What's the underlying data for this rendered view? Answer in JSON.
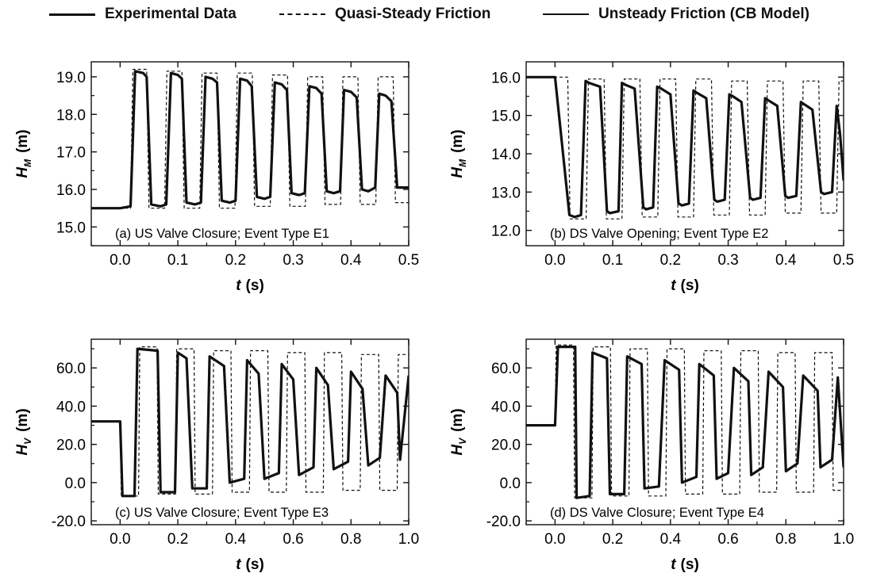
{
  "legend": {
    "items": [
      {
        "label": "Experimental Data",
        "style": "solid"
      },
      {
        "label": "Quasi-Steady Friction",
        "style": "dashed"
      },
      {
        "label": "Unsteady Friction (CB Model)",
        "style": "solid"
      }
    ]
  },
  "chart_data": [
    {
      "type": "line",
      "annotation": "(a) US Valve Closure; Event Type E1",
      "xlabel_var": "t",
      "xlabel_unit": "(s)",
      "ylabel_var": "H",
      "ylabel_sub": "M",
      "ylabel_unit": "(m)",
      "xlim": [
        -0.05,
        0.5
      ],
      "ylim": [
        14.5,
        19.4
      ],
      "xticks": [
        0.0,
        0.1,
        0.2,
        0.3,
        0.4,
        0.5
      ],
      "xtick_labels": [
        "0.0",
        "0.1",
        "0.2",
        "0.3",
        "0.4",
        "0.5"
      ],
      "yticks": [
        15.0,
        16.0,
        17.0,
        18.0,
        19.0
      ],
      "ytick_labels": [
        "15.0",
        "16.0",
        "17.0",
        "18.0",
        "19.0"
      ],
      "series": [
        {
          "style": "solid",
          "x": [
            -0.05,
            0.0,
            0.018,
            0.026,
            0.04,
            0.046,
            0.054,
            0.07,
            0.08,
            0.088,
            0.1,
            0.107,
            0.115,
            0.13,
            0.14,
            0.148,
            0.16,
            0.168,
            0.176,
            0.19,
            0.2,
            0.208,
            0.22,
            0.228,
            0.237,
            0.25,
            0.26,
            0.268,
            0.28,
            0.289,
            0.297,
            0.31,
            0.32,
            0.328,
            0.34,
            0.349,
            0.358,
            0.37,
            0.381,
            0.388,
            0.4,
            0.41,
            0.419,
            0.43,
            0.442,
            0.449,
            0.46,
            0.47,
            0.48,
            0.49,
            0.5
          ],
          "y": [
            15.5,
            15.5,
            15.55,
            19.15,
            19.1,
            19.0,
            15.6,
            15.55,
            15.6,
            19.1,
            19.05,
            18.95,
            15.65,
            15.6,
            15.65,
            19.0,
            18.95,
            18.85,
            15.7,
            15.65,
            15.7,
            18.95,
            18.9,
            18.75,
            15.8,
            15.75,
            15.8,
            18.85,
            18.8,
            18.65,
            15.9,
            15.85,
            15.9,
            18.75,
            18.7,
            18.55,
            15.95,
            15.9,
            15.95,
            18.65,
            18.6,
            18.45,
            16.0,
            15.95,
            16.05,
            18.55,
            18.5,
            18.35,
            16.05,
            16.05,
            16.05
          ]
        },
        {
          "style": "dashed",
          "x": [
            -0.05,
            0.0,
            0.018,
            0.022,
            0.046,
            0.05,
            0.077,
            0.081,
            0.107,
            0.111,
            0.138,
            0.142,
            0.168,
            0.172,
            0.199,
            0.203,
            0.229,
            0.233,
            0.26,
            0.264,
            0.29,
            0.294,
            0.321,
            0.325,
            0.351,
            0.355,
            0.382,
            0.386,
            0.412,
            0.416,
            0.443,
            0.447,
            0.473,
            0.477,
            0.5
          ],
          "y": [
            15.5,
            15.5,
            15.5,
            19.2,
            19.2,
            15.5,
            15.5,
            19.15,
            19.15,
            15.5,
            15.5,
            19.1,
            19.1,
            15.5,
            15.5,
            19.1,
            19.1,
            15.55,
            15.55,
            19.05,
            19.05,
            15.55,
            15.55,
            19.0,
            19.0,
            15.6,
            15.6,
            19.0,
            19.0,
            15.6,
            15.6,
            19.0,
            19.0,
            15.65,
            15.65
          ]
        }
      ]
    },
    {
      "type": "line",
      "annotation": "(b) DS Valve Opening; Event Type E2",
      "xlabel_var": "t",
      "xlabel_unit": "(s)",
      "ylabel_var": "H",
      "ylabel_sub": "M",
      "ylabel_unit": "(m)",
      "xlim": [
        -0.05,
        0.5
      ],
      "ylim": [
        11.6,
        16.4
      ],
      "xticks": [
        0.0,
        0.1,
        0.2,
        0.3,
        0.4,
        0.5
      ],
      "xtick_labels": [
        "0.0",
        "0.1",
        "0.2",
        "0.3",
        "0.4",
        "0.5"
      ],
      "yticks": [
        12.0,
        13.0,
        14.0,
        15.0,
        16.0
      ],
      "ytick_labels": [
        "12.0",
        "13.0",
        "14.0",
        "15.0",
        "16.0"
      ],
      "series": [
        {
          "style": "solid",
          "x": [
            -0.05,
            0.0,
            0.025,
            0.034,
            0.045,
            0.053,
            0.059,
            0.078,
            0.09,
            0.095,
            0.11,
            0.116,
            0.122,
            0.138,
            0.153,
            0.158,
            0.17,
            0.177,
            0.184,
            0.2,
            0.214,
            0.22,
            0.232,
            0.24,
            0.245,
            0.262,
            0.276,
            0.281,
            0.294,
            0.302,
            0.308,
            0.323,
            0.338,
            0.343,
            0.356,
            0.364,
            0.369,
            0.385,
            0.399,
            0.404,
            0.418,
            0.426,
            0.431,
            0.446,
            0.461,
            0.466,
            0.48,
            0.488,
            0.494,
            0.5
          ],
          "y": [
            16.0,
            16.0,
            12.4,
            12.35,
            12.4,
            15.9,
            15.85,
            15.75,
            12.5,
            12.45,
            12.5,
            15.85,
            15.8,
            15.7,
            12.6,
            12.55,
            12.6,
            15.75,
            15.7,
            15.55,
            12.7,
            12.65,
            12.7,
            15.65,
            15.6,
            15.45,
            12.8,
            12.75,
            12.8,
            15.55,
            15.5,
            15.35,
            12.85,
            12.8,
            12.85,
            15.45,
            15.4,
            15.25,
            12.9,
            12.85,
            12.9,
            15.35,
            15.3,
            15.15,
            13.0,
            12.95,
            13.0,
            15.25,
            14.5,
            13.3
          ]
        },
        {
          "style": "dashed",
          "x": [
            -0.05,
            0.0,
            0.022,
            0.026,
            0.054,
            0.058,
            0.085,
            0.089,
            0.116,
            0.12,
            0.147,
            0.151,
            0.178,
            0.182,
            0.209,
            0.213,
            0.24,
            0.244,
            0.271,
            0.275,
            0.302,
            0.306,
            0.333,
            0.337,
            0.364,
            0.368,
            0.395,
            0.399,
            0.426,
            0.43,
            0.457,
            0.461,
            0.488,
            0.492,
            0.5
          ],
          "y": [
            16.0,
            16.0,
            16.0,
            12.3,
            12.3,
            15.95,
            15.95,
            12.3,
            12.3,
            15.95,
            15.95,
            12.35,
            12.35,
            15.95,
            15.95,
            12.35,
            12.35,
            15.95,
            15.95,
            12.4,
            12.4,
            15.9,
            15.9,
            12.4,
            12.4,
            15.9,
            15.9,
            12.45,
            12.45,
            15.9,
            15.9,
            12.45,
            12.45,
            15.9,
            15.9
          ]
        }
      ]
    },
    {
      "type": "line",
      "annotation": "(c) US Valve Closure; Event Type E3",
      "xlabel_var": "t",
      "xlabel_unit": "(s)",
      "ylabel_var": "H",
      "ylabel_sub": "V",
      "ylabel_unit": "(m)",
      "xlim": [
        -0.1,
        1.0
      ],
      "ylim": [
        -22,
        75
      ],
      "xticks": [
        0.0,
        0.2,
        0.4,
        0.6,
        0.8,
        1.0
      ],
      "xtick_labels": [
        "0.0",
        "0.2",
        "0.4",
        "0.6",
        "0.8",
        "1.0"
      ],
      "yticks": [
        -20.0,
        0.0,
        20.0,
        40.0,
        60.0
      ],
      "ytick_labels": [
        "-20.0",
        "0.0",
        "20.0",
        "40.0",
        "60.0"
      ],
      "series": [
        {
          "style": "solid",
          "x": [
            -0.1,
            0.0,
            0.008,
            0.05,
            0.06,
            0.13,
            0.14,
            0.19,
            0.2,
            0.23,
            0.25,
            0.3,
            0.31,
            0.36,
            0.38,
            0.43,
            0.44,
            0.48,
            0.5,
            0.55,
            0.56,
            0.6,
            0.62,
            0.67,
            0.68,
            0.72,
            0.74,
            0.79,
            0.8,
            0.84,
            0.86,
            0.9,
            0.92,
            0.96,
            0.97,
            1.0
          ],
          "y": [
            32,
            32,
            -7,
            -7,
            70,
            69,
            -5,
            -5,
            68,
            65,
            -3,
            -3,
            66,
            61,
            0,
            2,
            64,
            57,
            2,
            5,
            62,
            54,
            4,
            8,
            60,
            51,
            7,
            11,
            58,
            49,
            9,
            13,
            56,
            47,
            12,
            56
          ]
        },
        {
          "style": "dashed",
          "x": [
            -0.1,
            0.0,
            0.004,
            0.064,
            0.068,
            0.128,
            0.132,
            0.192,
            0.196,
            0.256,
            0.26,
            0.32,
            0.324,
            0.384,
            0.388,
            0.448,
            0.452,
            0.512,
            0.516,
            0.576,
            0.58,
            0.64,
            0.644,
            0.704,
            0.708,
            0.768,
            0.772,
            0.832,
            0.836,
            0.896,
            0.9,
            0.96,
            0.964,
            1.0
          ],
          "y": [
            32,
            32,
            -7,
            -7,
            71,
            71,
            -6,
            -6,
            70,
            70,
            -6,
            -6,
            69,
            69,
            -5,
            -5,
            69,
            69,
            -5,
            -5,
            68,
            68,
            -5,
            -5,
            68,
            68,
            -4,
            -4,
            67,
            67,
            -4,
            -4,
            67,
            67
          ]
        }
      ]
    },
    {
      "type": "line",
      "annotation": "(d) DS Valve Closure; Event Type E4",
      "xlabel_var": "t",
      "xlabel_unit": "(s)",
      "ylabel_var": "H",
      "ylabel_sub": "V",
      "ylabel_unit": "(m)",
      "xlim": [
        -0.1,
        1.0
      ],
      "ylim": [
        -22,
        75
      ],
      "xticks": [
        0.0,
        0.2,
        0.4,
        0.6,
        0.8,
        1.0
      ],
      "xtick_labels": [
        "0.0",
        "0.2",
        "0.4",
        "0.6",
        "0.8",
        "1.0"
      ],
      "yticks": [
        -20.0,
        0.0,
        20.0,
        40.0,
        60.0
      ],
      "ytick_labels": [
        "-20.0",
        "0.0",
        "20.0",
        "40.0",
        "60.0"
      ],
      "series": [
        {
          "style": "solid",
          "x": [
            -0.1,
            0.0,
            0.01,
            0.07,
            0.075,
            0.12,
            0.13,
            0.18,
            0.19,
            0.24,
            0.25,
            0.3,
            0.31,
            0.36,
            0.38,
            0.43,
            0.44,
            0.49,
            0.5,
            0.55,
            0.56,
            0.6,
            0.62,
            0.67,
            0.68,
            0.72,
            0.74,
            0.79,
            0.8,
            0.84,
            0.86,
            0.91,
            0.92,
            0.96,
            0.98,
            1.0
          ],
          "y": [
            30,
            30,
            71,
            71,
            -8,
            -7,
            68,
            65,
            -6,
            -6,
            66,
            62,
            -3,
            -2,
            64,
            59,
            0,
            3,
            62,
            56,
            2,
            5,
            60,
            53,
            4,
            8,
            58,
            50,
            6,
            10,
            56,
            48,
            8,
            12,
            55,
            8
          ]
        },
        {
          "style": "dashed",
          "x": [
            -0.1,
            0.0,
            0.004,
            0.064,
            0.068,
            0.128,
            0.132,
            0.192,
            0.196,
            0.256,
            0.26,
            0.32,
            0.324,
            0.384,
            0.388,
            0.448,
            0.452,
            0.512,
            0.516,
            0.576,
            0.58,
            0.64,
            0.644,
            0.704,
            0.708,
            0.768,
            0.772,
            0.832,
            0.836,
            0.896,
            0.9,
            0.96,
            0.964,
            1.0
          ],
          "y": [
            30,
            30,
            72,
            72,
            -8,
            -8,
            71,
            71,
            -7,
            -7,
            70,
            70,
            -7,
            -7,
            70,
            70,
            -6,
            -6,
            69,
            69,
            -6,
            -6,
            69,
            69,
            -5,
            -5,
            68,
            68,
            -5,
            -5,
            68,
            68,
            -4,
            -4
          ]
        }
      ]
    }
  ]
}
